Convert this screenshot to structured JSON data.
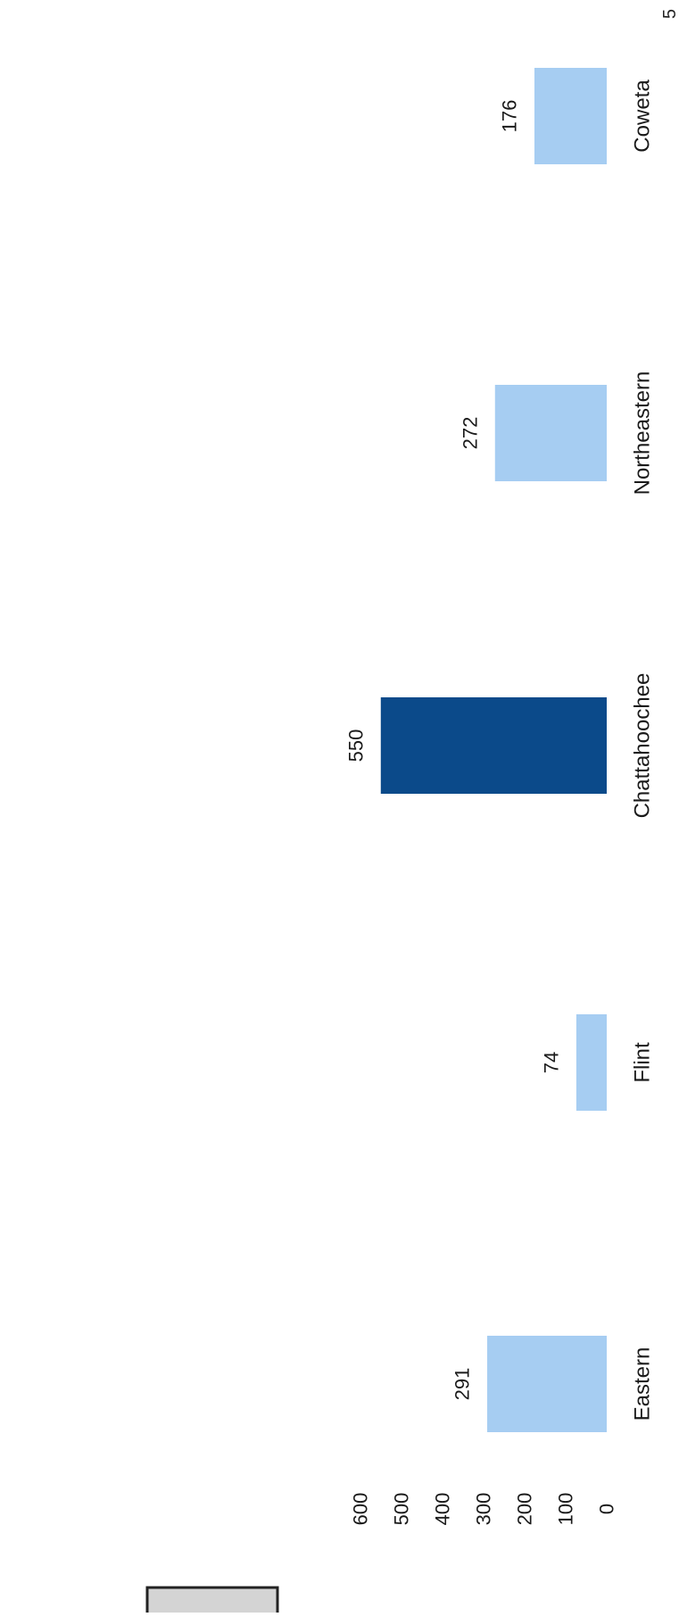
{
  "page_number": "5",
  "chart_data": {
    "type": "bar",
    "orientation": "rotated-90",
    "categories": [
      "Eastern",
      "Flint",
      "Chattahoochee",
      "Northeastern",
      "Coweta"
    ],
    "values": [
      291,
      74,
      550,
      272,
      176
    ],
    "data_labels": [
      "291",
      "74",
      "550",
      "272",
      "176"
    ],
    "ylim": [
      0,
      600
    ],
    "yticks": [
      "0",
      "100",
      "200",
      "300",
      "400",
      "500",
      "600"
    ],
    "highlight_category": "Chattahoochee",
    "grid": false,
    "colors": {
      "default_bar": "#a6cdf2",
      "highlight_bar": "#0b4a8a",
      "text": "#1a1a1a",
      "legend_box_fill": "#d4d4d4",
      "legend_box_stroke": "#222222"
    }
  }
}
